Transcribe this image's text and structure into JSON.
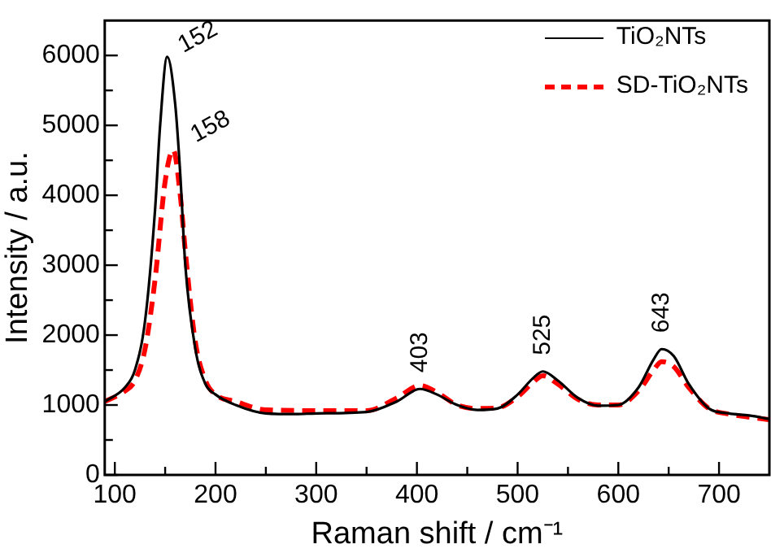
{
  "chart_data": {
    "type": "line",
    "xlabel": "Raman shift / cm⁻¹",
    "ylabel": "Intensity / a.u.",
    "x": [
      90,
      110,
      120,
      130,
      140,
      145,
      152,
      160,
      165,
      170,
      180,
      190,
      200,
      220,
      250,
      280,
      300,
      350,
      380,
      403,
      420,
      440,
      460,
      480,
      500,
      515,
      525,
      540,
      560,
      580,
      600,
      620,
      635,
      643,
      655,
      670,
      690,
      710,
      730,
      750
    ],
    "series": [
      {
        "name": "TiO₂NTs",
        "color": "#000000",
        "line_style": "solid",
        "values": [
          1050,
          1250,
          1500,
          2200,
          3800,
          5000,
          5980,
          5300,
          4300,
          3000,
          1800,
          1300,
          1150,
          1000,
          880,
          870,
          880,
          900,
          1050,
          1230,
          1150,
          1000,
          930,
          950,
          1150,
          1380,
          1480,
          1350,
          1100,
          990,
          1000,
          1250,
          1650,
          1800,
          1700,
          1300,
          950,
          880,
          850,
          800
        ]
      },
      {
        "name": "SD-TiO₂NTs",
        "color": "#ff0000",
        "line_style": "dashed",
        "x": [
          90,
          110,
          120,
          130,
          140,
          150,
          158,
          165,
          170,
          180,
          190,
          200,
          220,
          250,
          300,
          350,
          380,
          403,
          420,
          440,
          460,
          480,
          500,
          515,
          525,
          540,
          560,
          580,
          600,
          620,
          635,
          643,
          655,
          670,
          690,
          710,
          750
        ],
        "values": [
          1050,
          1200,
          1350,
          1800,
          2800,
          4200,
          4650,
          4000,
          3200,
          1900,
          1350,
          1150,
          1050,
          930,
          920,
          920,
          1100,
          1280,
          1180,
          1000,
          950,
          960,
          1120,
          1320,
          1420,
          1300,
          1080,
          1000,
          1000,
          1200,
          1500,
          1620,
          1550,
          1250,
          950,
          870,
          790
        ]
      }
    ],
    "xlim": [
      90,
      750
    ],
    "xticks": [
      100,
      {
        "value": 150,
        "label": null
      },
      200,
      {
        "value": 250,
        "label": null
      },
      300,
      {
        "value": 350,
        "label": null
      },
      400,
      {
        "value": 450,
        "label": null
      },
      500,
      {
        "value": 550,
        "label": null
      },
      600,
      {
        "value": 650,
        "label": null
      },
      700
    ],
    "ylim": [
      0,
      6500
    ],
    "yticks": [
      0,
      {
        "value": 500,
        "label": null
      },
      1000,
      {
        "value": 1500,
        "label": null
      },
      2000,
      {
        "value": 2500,
        "label": null
      },
      3000,
      {
        "value": 3500,
        "label": null
      },
      4000,
      {
        "value": 4500,
        "label": null
      },
      5000,
      {
        "value": 5500,
        "label": null
      },
      6000
    ],
    "annotations": [
      {
        "text": "152",
        "x": 152,
        "y": 5980
      },
      {
        "text": "158",
        "x": 158,
        "y": 4650
      },
      {
        "text": "403",
        "x": 403,
        "y": 1230
      },
      {
        "text": "525",
        "x": 525,
        "y": 1480
      },
      {
        "text": "643",
        "x": 643,
        "y": 1800
      }
    ],
    "legend": "top right",
    "grid": false,
    "marker": "none"
  }
}
